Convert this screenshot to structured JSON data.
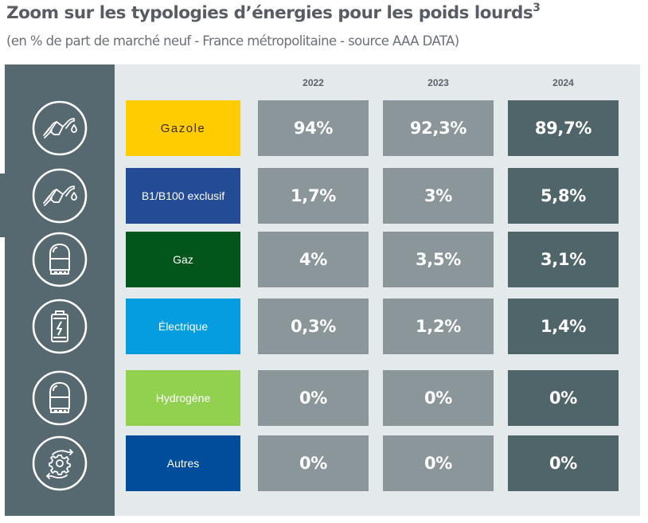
{
  "header": {
    "title": "Zoom sur les typologies d’énergies pour les poids lourds",
    "title_superscript": "3",
    "subtitle": "(en % de part de marché neuf - France métropolitaine - source AAA DATA)"
  },
  "colors": {
    "panel_bg": "#e4e9ec",
    "side_column": "#566870",
    "cell_past": "#8a9699",
    "cell_current": "#506569"
  },
  "chart_data": {
    "type": "table",
    "title": "Zoom sur les typologies d’énergies pour les poids lourds",
    "subtitle": "(en % de part de marché neuf - France métropolitaine - source AAA DATA)",
    "unit": "%",
    "columns": [
      "2022",
      "2023",
      "2024"
    ],
    "rows": [
      {
        "label": "Gazole",
        "icon": "fuel-pump-icon",
        "color": "#fecc00",
        "text_color": "#3a2a1a",
        "values": [
          94,
          92.3,
          89.7
        ],
        "display": [
          "94%",
          "92,3%",
          "89,7%"
        ]
      },
      {
        "label": "B1/B100 exclusif",
        "icon": "fuel-pump-icon",
        "color": "#234b96",
        "text_color": "#ffffff",
        "values": [
          1.7,
          3,
          5.8
        ],
        "display": [
          "1,7%",
          "3%",
          "5,8%"
        ]
      },
      {
        "label": "Gaz",
        "icon": "gas-tank-icon",
        "color": "#03561b",
        "text_color": "#ffffff",
        "values": [
          4,
          3.5,
          3.1
        ],
        "display": [
          "4%",
          "3,5%",
          "3,1%"
        ]
      },
      {
        "label": "Électrique",
        "icon": "battery-icon",
        "color": "#069de0",
        "text_color": "#ffffff",
        "values": [
          0.3,
          1.2,
          1.4
        ],
        "display": [
          "0,3%",
          "1,2%",
          "1,4%"
        ]
      },
      {
        "label": "Hydrogène",
        "icon": "gas-tank-icon",
        "color": "#92d050",
        "text_color": "#ffffff",
        "values": [
          0,
          0,
          0
        ],
        "display": [
          "0%",
          "0%",
          "0%"
        ]
      },
      {
        "label": "Autres",
        "icon": "gear-cycle-icon",
        "color": "#024c9c",
        "text_color": "#ffffff",
        "values": [
          0,
          0,
          0
        ],
        "display": [
          "0%",
          "0%",
          "0%"
        ]
      }
    ]
  }
}
